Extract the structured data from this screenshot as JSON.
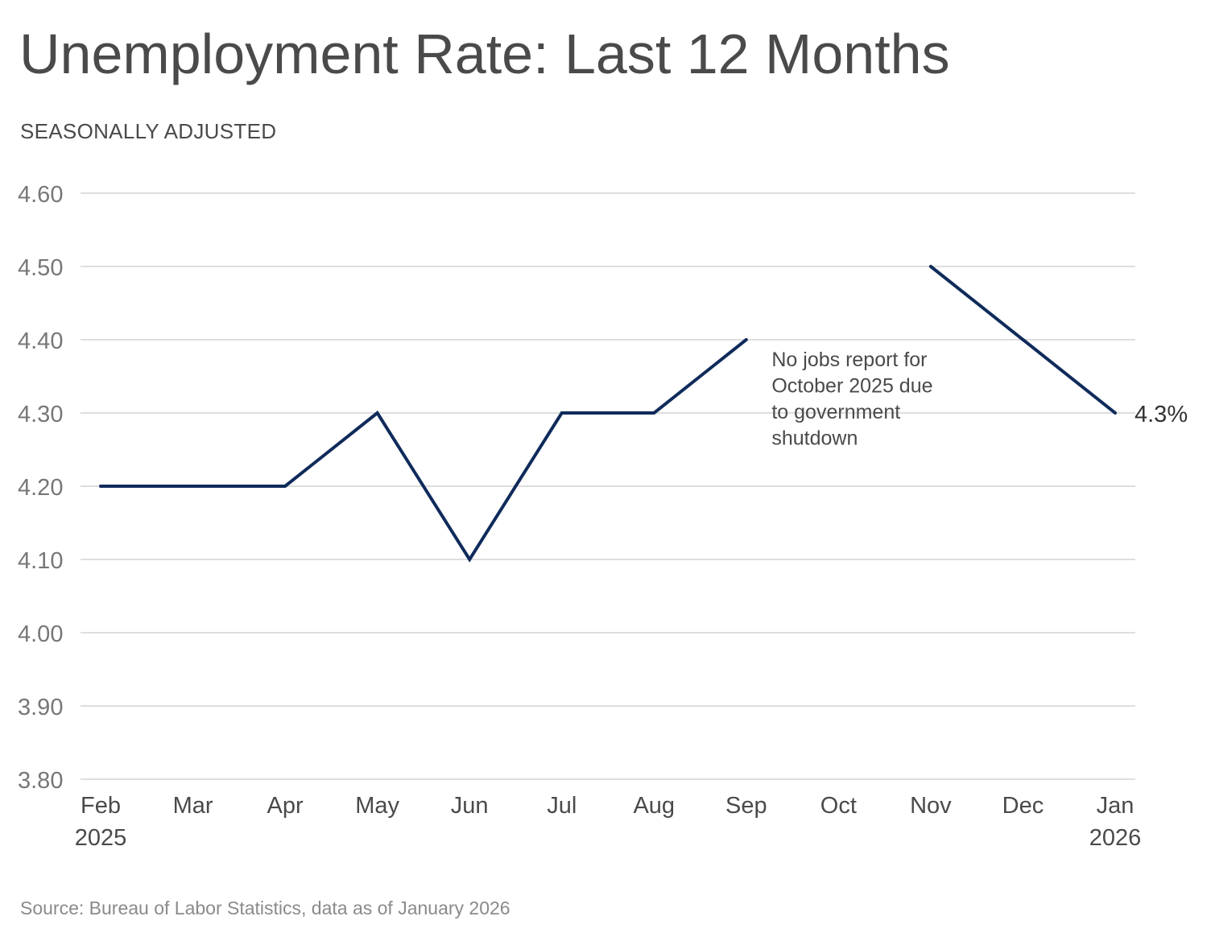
{
  "chart_data": {
    "type": "line",
    "title": "Unemployment Rate: Last 12 Months",
    "subtitle": "SEASONALLY ADJUSTED",
    "source": "Source: Bureau of Labor Statistics, data as of January 2026",
    "categories": [
      "Feb",
      "Mar",
      "Apr",
      "May",
      "Jun",
      "Jul",
      "Aug",
      "Sep",
      "Oct",
      "Nov",
      "Dec",
      "Jan"
    ],
    "category_years": [
      "2025",
      "",
      "",
      "",
      "",
      "",
      "",
      "",
      "",
      "",
      "",
      "2026"
    ],
    "series": [
      {
        "values": [
          4.2,
          4.2,
          4.2,
          4.3,
          4.1,
          4.3,
          4.3,
          4.4,
          null,
          4.5,
          4.4,
          4.3
        ],
        "color": "#0f2b5b"
      }
    ],
    "ylim": [
      3.8,
      4.6
    ],
    "yticks": [
      "4.60",
      "4.50",
      "4.40",
      "4.30",
      "4.20",
      "4.10",
      "4.00",
      "3.90",
      "3.80"
    ],
    "grid": true,
    "legend": "none",
    "annotations": [
      {
        "text_lines": [
          "No jobs report for",
          "October 2025 due",
          "to government",
          "shutdown"
        ],
        "near_category": "Oct"
      }
    ],
    "end_label": "4.3%"
  }
}
